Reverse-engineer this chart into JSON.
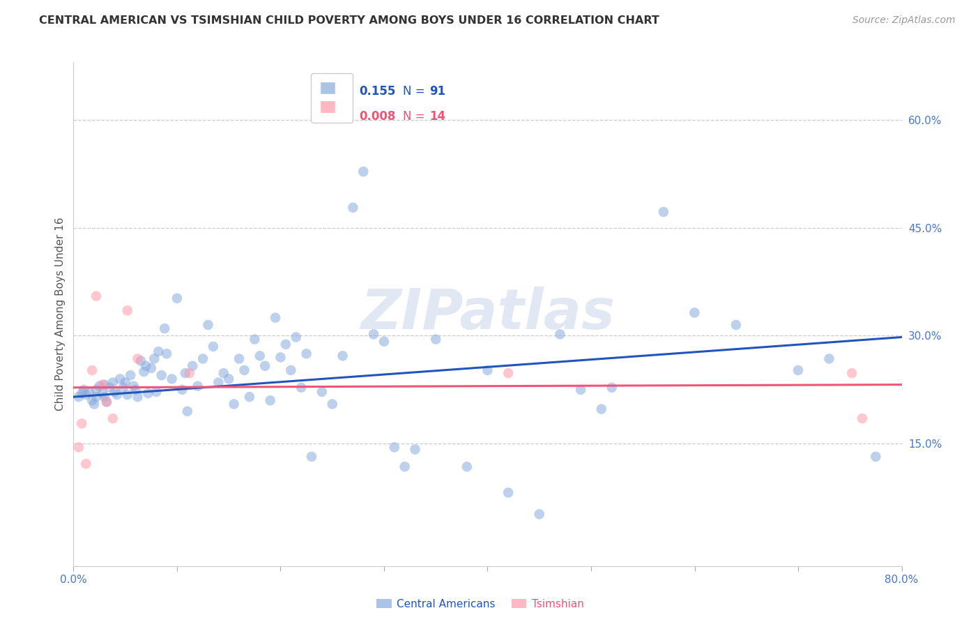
{
  "title": "CENTRAL AMERICAN VS TSIMSHIAN CHILD POVERTY AMONG BOYS UNDER 16 CORRELATION CHART",
  "source": "Source: ZipAtlas.com",
  "ylabel": "Child Poverty Among Boys Under 16",
  "xlim": [
    0.0,
    0.8
  ],
  "ylim": [
    -0.02,
    0.68
  ],
  "y_ticks_right": [
    0.15,
    0.3,
    0.45,
    0.6
  ],
  "y_tick_labels_right": [
    "15.0%",
    "30.0%",
    "45.0%",
    "60.0%"
  ],
  "color_blue": "#88AADD",
  "color_pink": "#FF99AA",
  "line_blue": "#2255BB",
  "line_pink": "#EE5577",
  "watermark": "ZIPatlas",
  "blue_scatter_x": [
    0.005,
    0.008,
    0.01,
    0.012,
    0.015,
    0.018,
    0.02,
    0.022,
    0.022,
    0.025,
    0.028,
    0.03,
    0.03,
    0.032,
    0.035,
    0.038,
    0.04,
    0.042,
    0.045,
    0.048,
    0.05,
    0.052,
    0.055,
    0.058,
    0.06,
    0.062,
    0.065,
    0.068,
    0.07,
    0.072,
    0.075,
    0.078,
    0.08,
    0.082,
    0.085,
    0.088,
    0.09,
    0.095,
    0.1,
    0.105,
    0.108,
    0.11,
    0.115,
    0.12,
    0.125,
    0.13,
    0.135,
    0.14,
    0.145,
    0.15,
    0.155,
    0.16,
    0.165,
    0.17,
    0.175,
    0.18,
    0.185,
    0.19,
    0.195,
    0.2,
    0.205,
    0.21,
    0.215,
    0.22,
    0.225,
    0.23,
    0.24,
    0.25,
    0.26,
    0.27,
    0.28,
    0.29,
    0.3,
    0.31,
    0.32,
    0.33,
    0.35,
    0.38,
    0.4,
    0.42,
    0.45,
    0.47,
    0.49,
    0.51,
    0.52,
    0.57,
    0.6,
    0.64,
    0.7,
    0.73,
    0.775
  ],
  "blue_scatter_y": [
    0.215,
    0.22,
    0.225,
    0.218,
    0.222,
    0.21,
    0.205,
    0.225,
    0.215,
    0.23,
    0.22,
    0.215,
    0.232,
    0.208,
    0.228,
    0.235,
    0.222,
    0.218,
    0.24,
    0.228,
    0.235,
    0.218,
    0.245,
    0.23,
    0.225,
    0.215,
    0.265,
    0.25,
    0.258,
    0.22,
    0.255,
    0.268,
    0.222,
    0.278,
    0.245,
    0.31,
    0.275,
    0.24,
    0.352,
    0.225,
    0.248,
    0.195,
    0.258,
    0.23,
    0.268,
    0.315,
    0.285,
    0.235,
    0.248,
    0.24,
    0.205,
    0.268,
    0.252,
    0.215,
    0.295,
    0.272,
    0.258,
    0.21,
    0.325,
    0.27,
    0.288,
    0.252,
    0.298,
    0.228,
    0.275,
    0.132,
    0.222,
    0.205,
    0.272,
    0.478,
    0.528,
    0.302,
    0.292,
    0.145,
    0.118,
    0.142,
    0.295,
    0.118,
    0.252,
    0.082,
    0.052,
    0.302,
    0.225,
    0.198,
    0.228,
    0.472,
    0.332,
    0.315,
    0.252,
    0.268,
    0.132
  ],
  "pink_scatter_x": [
    0.005,
    0.008,
    0.012,
    0.018,
    0.022,
    0.028,
    0.032,
    0.038,
    0.052,
    0.062,
    0.112,
    0.42,
    0.752,
    0.762
  ],
  "pink_scatter_y": [
    0.145,
    0.178,
    0.122,
    0.252,
    0.355,
    0.232,
    0.208,
    0.185,
    0.335,
    0.268,
    0.248,
    0.248,
    0.248,
    0.185
  ],
  "blue_line_x": [
    0.0,
    0.8
  ],
  "blue_line_y": [
    0.215,
    0.298
  ],
  "pink_line_x": [
    0.0,
    0.8
  ],
  "pink_line_y": [
    0.228,
    0.232
  ],
  "grid_color": "#CCCCCC",
  "background_color": "#FFFFFF",
  "title_color": "#333333",
  "source_color": "#999999",
  "ylabel_color": "#555555",
  "tick_color": "#4477CC"
}
